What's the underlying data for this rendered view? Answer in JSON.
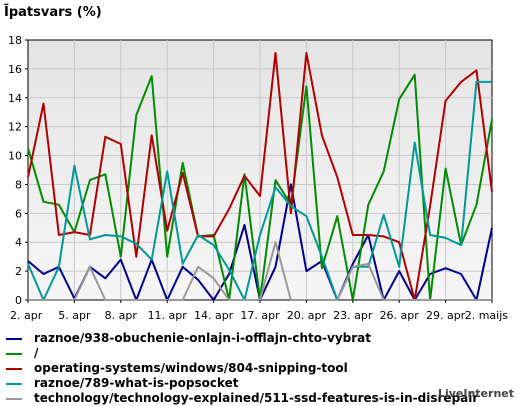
{
  "title": "Īpatsvars (%)",
  "watermark": "LiveInternet",
  "chart_data": {
    "type": "line",
    "ylim": [
      0,
      18
    ],
    "yticks": [
      "0",
      "2",
      "4",
      "6",
      "8",
      "10",
      "12",
      "14",
      "16",
      "18"
    ],
    "x_tick_labels": [
      "2. apr",
      "5. apr",
      "8. apr",
      "11. apr",
      "14. apr",
      "17. apr",
      "20. apr",
      "23. apr",
      "26. apr",
      "29. apr",
      "2. maijs"
    ],
    "x_tick_index": [
      0,
      3,
      6,
      9,
      12,
      15,
      18,
      21,
      24,
      27,
      30
    ],
    "grid": true,
    "series": [
      {
        "name": "raznoe/938-obuchenie-onlajn-i-offlajn-chto-vybrat",
        "color": "#00008b",
        "values": [
          2.7,
          1.8,
          2.3,
          0.1,
          2.3,
          1.5,
          2.8,
          0,
          2.8,
          0,
          2.3,
          1.4,
          0,
          1.8,
          5.2,
          0,
          2.3,
          8.0,
          2.0,
          2.7,
          0,
          2.5,
          4.5,
          0,
          2.0,
          0,
          1.8,
          2.2,
          1.8,
          0,
          5.0
        ]
      },
      {
        "name": "/",
        "color": "#008c00",
        "values": [
          10.5,
          6.8,
          6.6,
          4.7,
          8.3,
          8.7,
          3.0,
          12.8,
          15.5,
          3.0,
          9.5,
          4.4,
          4.5,
          0,
          8.7,
          0,
          8.3,
          6.6,
          14.8,
          2.2,
          5.8,
          0,
          6.6,
          8.9,
          13.9,
          15.6,
          0,
          9.1,
          3.8,
          6.6,
          12.5
        ]
      },
      {
        "name": "operating-systems/windows/804-snipping-tool",
        "color": "#b00000",
        "values": [
          8.5,
          13.6,
          4.5,
          4.7,
          4.5,
          11.3,
          10.8,
          3.0,
          11.4,
          4.8,
          8.8,
          4.4,
          4.4,
          6.3,
          8.6,
          7.2,
          17.1,
          6.0,
          17.1,
          11.4,
          8.5,
          4.5,
          4.5,
          4.4,
          4.0,
          0,
          6.5,
          13.8,
          15.1,
          15.9,
          7.5
        ]
      },
      {
        "name": "raznoe/789-what-is-popsocket",
        "color": "#009999",
        "values": [
          2.5,
          0,
          2.3,
          9.3,
          4.2,
          4.5,
          4.4,
          3.9,
          2.8,
          8.9,
          2.5,
          4.5,
          3.8,
          2.1,
          0,
          4.5,
          7.8,
          6.5,
          5.8,
          3.0,
          0,
          2.3,
          2.3,
          5.9,
          2.3,
          10.9,
          4.5,
          4.3,
          3.8,
          15.1,
          15.1
        ]
      },
      {
        "name": "technology/technology-explained/511-ssd-features-is-in-disrepair",
        "color": "#999999",
        "values": [
          0,
          0,
          0,
          0,
          2.3,
          0,
          0,
          0,
          0,
          0,
          0,
          2.3,
          1.5,
          0,
          0,
          0,
          4.0,
          0,
          0,
          0,
          0,
          2.3,
          2.5,
          0,
          0,
          0,
          0,
          0,
          0,
          0,
          0
        ]
      }
    ]
  }
}
